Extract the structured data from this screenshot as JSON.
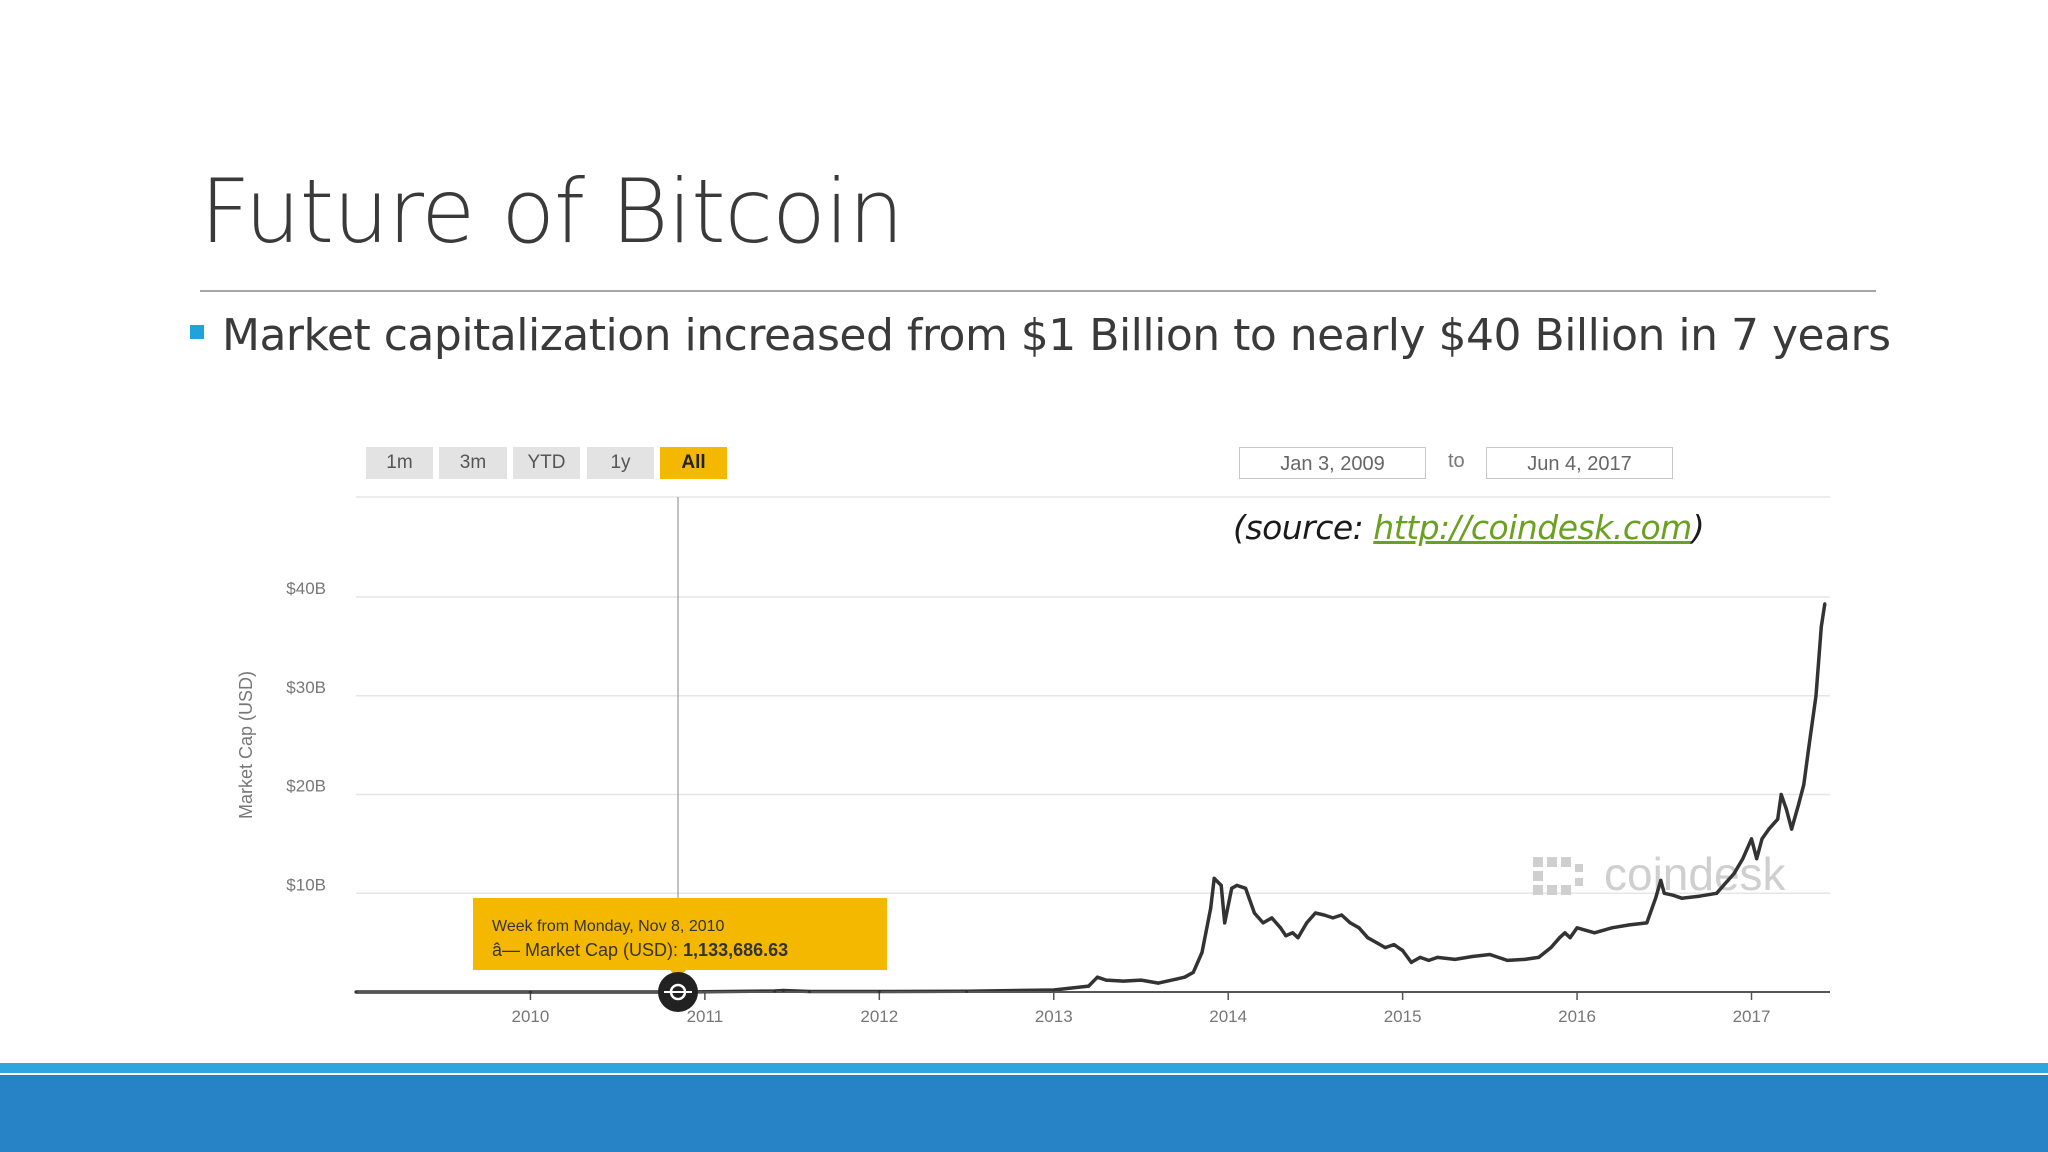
{
  "slide": {
    "title": "Future of Bitcoin",
    "bullet": "Market capitalization increased from $1 Billion to nearly $40 Billion in 7 years"
  },
  "widget": {
    "range_buttons": [
      {
        "label": "1m",
        "active": false
      },
      {
        "label": "3m",
        "active": false
      },
      {
        "label": "YTD",
        "active": false
      },
      {
        "label": "1y",
        "active": false
      },
      {
        "label": "All",
        "active": true
      }
    ],
    "date_from": "Jan 3, 2009",
    "date_to_label": "to",
    "date_to": "Jun 4, 2017",
    "watermark": "coindesk"
  },
  "source": {
    "prefix": "(source: ",
    "link_text": "http://coindesk.com",
    "suffix": ")"
  },
  "tooltip": {
    "line1": "Week from Monday, Nov 8, 2010",
    "line2_label": "â— Market Cap (USD): ",
    "line2_value": "1,133,686.63",
    "x": 2010.86,
    "y": 0.00113
  },
  "colors": {
    "accent_yellow": "#f5b800",
    "line": "#333333",
    "footer_dark": "#2783c5",
    "footer_light": "#2da6e0",
    "bullet": "#1fa3dc",
    "link": "#6aa121"
  },
  "chart_data": {
    "type": "line",
    "title": "",
    "xlabel": "",
    "ylabel": "Market Cap (USD)",
    "x_unit": "year",
    "y_unit": "billion USD",
    "xlim": [
      2009.0,
      2017.45
    ],
    "ylim": [
      0,
      50
    ],
    "grid": true,
    "legend": "none",
    "x_ticks": [
      {
        "label": "2010",
        "value": 2010
      },
      {
        "label": "2011",
        "value": 2011
      },
      {
        "label": "2012",
        "value": 2012
      },
      {
        "label": "2013",
        "value": 2013
      },
      {
        "label": "2014",
        "value": 2014
      },
      {
        "label": "2015",
        "value": 2015
      },
      {
        "label": "2016",
        "value": 2016
      },
      {
        "label": "2017",
        "value": 2017
      }
    ],
    "y_ticks": [
      {
        "label": "$10B",
        "value": 10
      },
      {
        "label": "$20B",
        "value": 20
      },
      {
        "label": "$30B",
        "value": 30
      },
      {
        "label": "$40B",
        "value": 40
      }
    ],
    "series": [
      {
        "color": "#333333",
        "points": [
          [
            2009.0,
            0
          ],
          [
            2010.0,
            0
          ],
          [
            2010.86,
            0.001
          ],
          [
            2011.4,
            0.1
          ],
          [
            2011.45,
            0.15
          ],
          [
            2011.6,
            0.05
          ],
          [
            2012.0,
            0.05
          ],
          [
            2012.5,
            0.08
          ],
          [
            2013.0,
            0.2
          ],
          [
            2013.2,
            0.6
          ],
          [
            2013.25,
            1.5
          ],
          [
            2013.3,
            1.2
          ],
          [
            2013.4,
            1.1
          ],
          [
            2013.5,
            1.2
          ],
          [
            2013.6,
            0.9
          ],
          [
            2013.7,
            1.3
          ],
          [
            2013.75,
            1.5
          ],
          [
            2013.8,
            2.0
          ],
          [
            2013.85,
            4.0
          ],
          [
            2013.9,
            8.5
          ],
          [
            2013.92,
            11.5
          ],
          [
            2013.96,
            10.8
          ],
          [
            2013.98,
            7.0
          ],
          [
            2014.02,
            10.5
          ],
          [
            2014.05,
            10.8
          ],
          [
            2014.1,
            10.5
          ],
          [
            2014.15,
            8.0
          ],
          [
            2014.2,
            7.0
          ],
          [
            2014.25,
            7.5
          ],
          [
            2014.3,
            6.5
          ],
          [
            2014.33,
            5.7
          ],
          [
            2014.37,
            6.0
          ],
          [
            2014.4,
            5.5
          ],
          [
            2014.45,
            7.0
          ],
          [
            2014.5,
            8.0
          ],
          [
            2014.55,
            7.8
          ],
          [
            2014.6,
            7.5
          ],
          [
            2014.65,
            7.8
          ],
          [
            2014.7,
            7.0
          ],
          [
            2014.75,
            6.5
          ],
          [
            2014.8,
            5.5
          ],
          [
            2014.85,
            5.0
          ],
          [
            2014.9,
            4.5
          ],
          [
            2014.95,
            4.8
          ],
          [
            2015.0,
            4.2
          ],
          [
            2015.05,
            3.0
          ],
          [
            2015.1,
            3.5
          ],
          [
            2015.15,
            3.2
          ],
          [
            2015.2,
            3.5
          ],
          [
            2015.3,
            3.3
          ],
          [
            2015.4,
            3.6
          ],
          [
            2015.5,
            3.8
          ],
          [
            2015.6,
            3.2
          ],
          [
            2015.7,
            3.3
          ],
          [
            2015.78,
            3.5
          ],
          [
            2015.85,
            4.5
          ],
          [
            2015.9,
            5.5
          ],
          [
            2015.93,
            6.0
          ],
          [
            2015.96,
            5.5
          ],
          [
            2016.0,
            6.5
          ],
          [
            2016.1,
            6.0
          ],
          [
            2016.2,
            6.5
          ],
          [
            2016.3,
            6.8
          ],
          [
            2016.4,
            7.0
          ],
          [
            2016.45,
            9.5
          ],
          [
            2016.48,
            11.3
          ],
          [
            2016.5,
            10.0
          ],
          [
            2016.55,
            9.8
          ],
          [
            2016.6,
            9.5
          ],
          [
            2016.7,
            9.7
          ],
          [
            2016.8,
            10.0
          ],
          [
            2016.85,
            11.0
          ],
          [
            2016.9,
            12.0
          ],
          [
            2016.95,
            13.5
          ],
          [
            2017.0,
            15.5
          ],
          [
            2017.03,
            13.5
          ],
          [
            2017.06,
            15.5
          ],
          [
            2017.1,
            16.5
          ],
          [
            2017.15,
            17.5
          ],
          [
            2017.17,
            20.0
          ],
          [
            2017.2,
            18.5
          ],
          [
            2017.23,
            16.5
          ],
          [
            2017.27,
            19.0
          ],
          [
            2017.3,
            21.0
          ],
          [
            2017.33,
            25.0
          ],
          [
            2017.37,
            30.0
          ],
          [
            2017.4,
            37.0
          ],
          [
            2017.42,
            39.3
          ]
        ]
      }
    ]
  }
}
